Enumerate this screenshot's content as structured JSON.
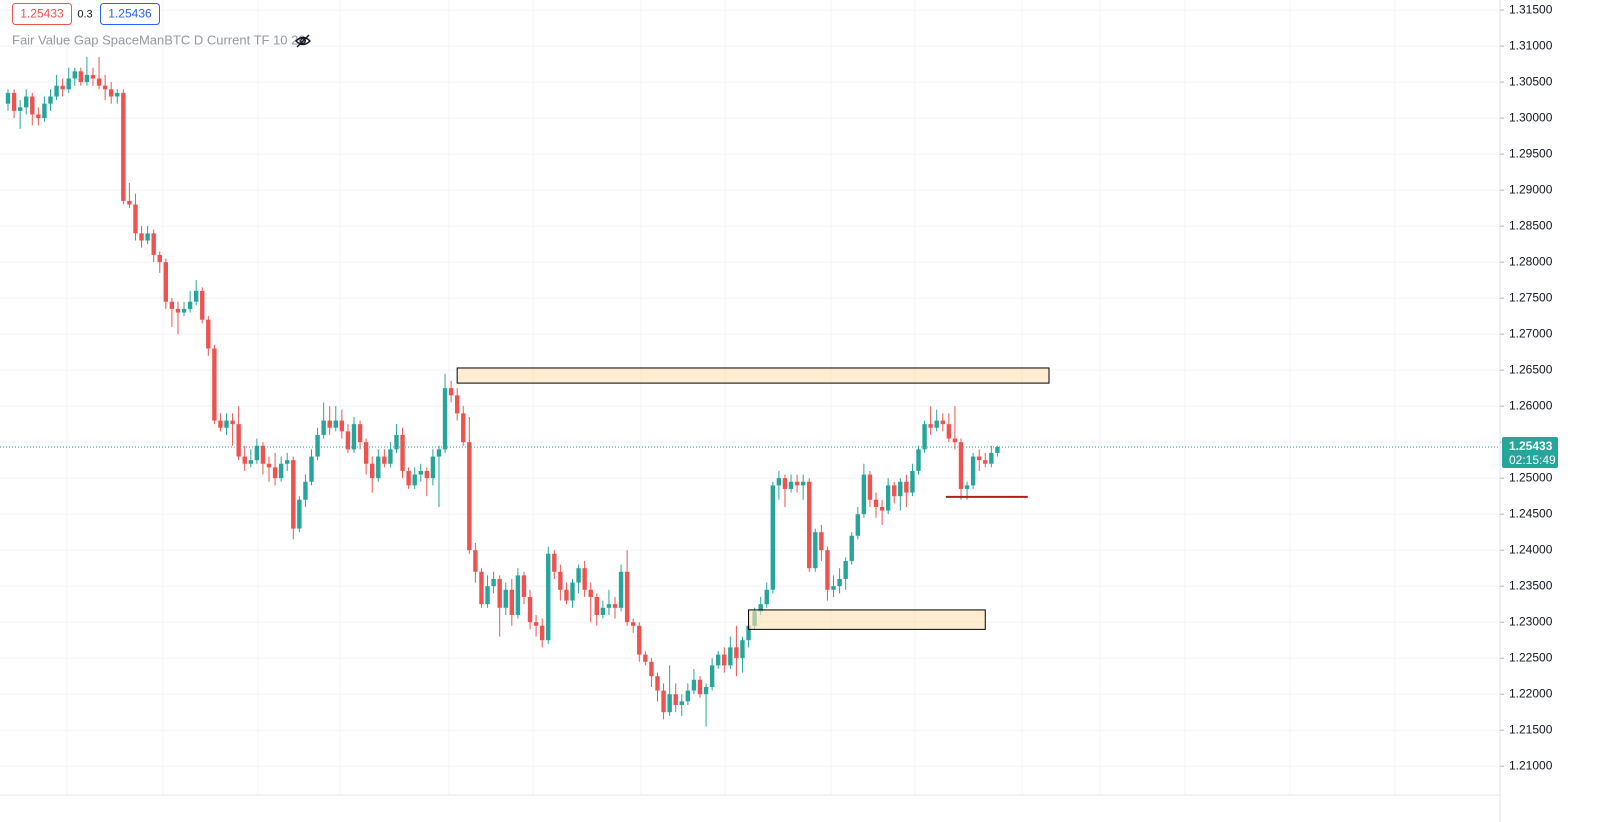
{
  "chart_data": {
    "type": "candlestick",
    "title": "Fair Value Gap SpaceManBTC D Current TF 10 20",
    "quote": {
      "bid": "1.25433",
      "spread": "0.3",
      "ask": "1.25436"
    },
    "up_color": "#26a69a",
    "down_color": "#ef5350",
    "open": [
      1.302,
      1.3035,
      1.301,
      1.3015,
      1.303,
      1.3005,
      1.3,
      1.302,
      1.303,
      1.3045,
      1.304,
      1.3055,
      1.3065,
      1.305,
      1.306,
      1.3055,
      1.3045,
      1.304,
      1.303,
      1.3035,
      1.2885,
      1.288,
      1.284,
      1.283,
      1.284,
      1.281,
      1.28,
      1.2745,
      1.2735,
      1.273,
      1.2735,
      1.2745,
      1.276,
      1.272,
      1.268,
      1.258,
      1.257,
      1.258,
      1.2575,
      1.253,
      1.252,
      1.2525,
      1.2545,
      1.252,
      1.2515,
      1.25,
      1.252,
      1.2525,
      1.243,
      1.247,
      1.2495,
      1.253,
      1.256,
      1.258,
      1.257,
      1.258,
      1.2565,
      1.254,
      1.2575,
      1.255,
      1.252,
      1.25,
      1.253,
      1.252,
      1.254,
      1.256,
      1.251,
      1.249,
      1.2505,
      1.251,
      1.25,
      1.253,
      1.254,
      1.2625,
      1.2615,
      1.259,
      1.255,
      1.24,
      1.237,
      1.2325,
      1.235,
      1.236,
      1.232,
      1.2345,
      1.231,
      1.2365,
      1.2335,
      1.23,
      1.2295,
      1.2275,
      1.2395,
      1.237,
      1.2345,
      1.233,
      1.2355,
      1.2375,
      1.2345,
      1.2335,
      1.231,
      1.232,
      1.2325,
      1.232,
      1.237,
      1.23,
      1.2295,
      1.2255,
      1.2245,
      1.2225,
      1.2205,
      1.2175,
      1.22,
      1.2185,
      1.219,
      1.2205,
      1.222,
      1.22,
      1.221,
      1.224,
      1.2255,
      1.224,
      1.2265,
      1.225,
      1.2275,
      1.2295,
      1.2315,
      1.2325,
      1.2345,
      1.249,
      1.25,
      1.2485,
      1.2495,
      1.249,
      1.2495,
      1.2375,
      1.2425,
      1.24,
      1.2345,
      1.235,
      1.236,
      1.2385,
      1.242,
      1.245,
      1.2505,
      1.247,
      1.246,
      1.2455,
      1.249,
      1.2475,
      1.2495,
      1.248,
      1.251,
      1.254,
      1.2575,
      1.257,
      1.258,
      1.2575,
      1.2555,
      1.255,
      1.2485,
      1.249,
      1.253,
      1.2525,
      1.252,
      1.2535
    ],
    "high": [
      1.304,
      1.304,
      1.3025,
      1.304,
      1.3035,
      1.3015,
      1.303,
      1.304,
      1.306,
      1.3055,
      1.307,
      1.307,
      1.307,
      1.3085,
      1.307,
      1.3085,
      1.306,
      1.305,
      1.304,
      1.304,
      1.291,
      1.2895,
      1.285,
      1.285,
      1.2845,
      1.2815,
      1.2805,
      1.275,
      1.2745,
      1.2745,
      1.276,
      1.2775,
      1.2765,
      1.2725,
      1.2685,
      1.259,
      1.259,
      1.259,
      1.26,
      1.2545,
      1.254,
      1.2555,
      1.255,
      1.253,
      1.2535,
      1.253,
      1.2535,
      1.253,
      1.2475,
      1.2505,
      1.254,
      1.257,
      1.2605,
      1.26,
      1.26,
      1.2595,
      1.2575,
      1.2585,
      1.258,
      1.2555,
      1.253,
      1.254,
      1.254,
      1.255,
      1.2575,
      1.257,
      1.2515,
      1.2515,
      1.252,
      1.2515,
      1.254,
      1.2545,
      1.2645,
      1.2635,
      1.2625,
      1.26,
      1.2585,
      1.241,
      1.2375,
      1.2365,
      1.237,
      1.2365,
      1.2355,
      1.236,
      1.2375,
      1.237,
      1.2345,
      1.231,
      1.2305,
      1.2405,
      1.24,
      1.238,
      1.2355,
      1.236,
      1.238,
      1.2385,
      1.2355,
      1.234,
      1.233,
      1.2345,
      1.2335,
      1.238,
      1.24,
      1.2305,
      1.23,
      1.226,
      1.225,
      1.223,
      1.2215,
      1.224,
      1.2215,
      1.22,
      1.2215,
      1.2235,
      1.2225,
      1.2215,
      1.225,
      1.226,
      1.2265,
      1.228,
      1.2295,
      1.228,
      1.23,
      1.232,
      1.2335,
      1.2355,
      1.2495,
      1.251,
      1.2505,
      1.2505,
      1.2505,
      1.2505,
      1.25,
      1.243,
      1.2435,
      1.2405,
      1.2365,
      1.2375,
      1.239,
      1.2425,
      1.246,
      1.252,
      1.251,
      1.248,
      1.247,
      1.25,
      1.2495,
      1.25,
      1.2505,
      1.252,
      1.2545,
      1.258,
      1.26,
      1.2595,
      1.259,
      1.259,
      1.26,
      1.2555,
      1.2495,
      1.2535,
      1.254,
      1.2535,
      1.2545,
      1.2545
    ],
    "low": [
      1.301,
      1.3,
      1.2985,
      1.3005,
      1.299,
      1.299,
      1.2995,
      1.301,
      1.3025,
      1.303,
      1.3035,
      1.3045,
      1.3045,
      1.3045,
      1.3045,
      1.304,
      1.3025,
      1.302,
      1.302,
      1.288,
      1.2875,
      1.283,
      1.282,
      1.2825,
      1.28,
      1.2785,
      1.2735,
      1.271,
      1.27,
      1.2725,
      1.273,
      1.274,
      1.2715,
      1.267,
      1.2575,
      1.2565,
      1.256,
      1.2545,
      1.2525,
      1.251,
      1.2515,
      1.252,
      1.2505,
      1.2495,
      1.249,
      1.2495,
      1.251,
      1.2415,
      1.2425,
      1.246,
      1.249,
      1.2525,
      1.2555,
      1.256,
      1.2565,
      1.2555,
      1.2535,
      1.2535,
      1.254,
      1.2505,
      1.248,
      1.2495,
      1.2515,
      1.2515,
      1.2535,
      1.25,
      1.2485,
      1.2485,
      1.2495,
      1.2475,
      1.249,
      1.246,
      1.2535,
      1.2605,
      1.258,
      1.2545,
      1.2395,
      1.2355,
      1.232,
      1.232,
      1.234,
      1.228,
      1.231,
      1.2295,
      1.2305,
      1.2325,
      1.229,
      1.228,
      1.2265,
      1.227,
      1.236,
      1.233,
      1.2325,
      1.232,
      1.234,
      1.2335,
      1.23,
      1.2295,
      1.2305,
      1.231,
      1.2305,
      1.2315,
      1.2295,
      1.2285,
      1.2245,
      1.224,
      1.221,
      1.219,
      1.2165,
      1.217,
      1.2175,
      1.217,
      1.2185,
      1.22,
      1.2195,
      1.2155,
      1.2205,
      1.2235,
      1.223,
      1.2235,
      1.2225,
      1.223,
      1.2265,
      1.229,
      1.231,
      1.232,
      1.234,
      1.247,
      1.246,
      1.248,
      1.248,
      1.247,
      1.237,
      1.237,
      1.2385,
      1.233,
      1.2335,
      1.234,
      1.2345,
      1.238,
      1.2415,
      1.2445,
      1.246,
      1.2445,
      1.2435,
      1.245,
      1.2465,
      1.2455,
      1.246,
      1.2475,
      1.2505,
      1.2535,
      1.256,
      1.2565,
      1.2565,
      1.255,
      1.254,
      1.247,
      1.247,
      1.2485,
      1.251,
      1.2515,
      1.2515,
      1.253
    ],
    "close": [
      1.3035,
      1.301,
      1.3015,
      1.303,
      1.3005,
      1.3,
      1.302,
      1.303,
      1.3045,
      1.304,
      1.3055,
      1.3065,
      1.305,
      1.306,
      1.3055,
      1.3045,
      1.304,
      1.303,
      1.3035,
      1.2885,
      1.288,
      1.284,
      1.283,
      1.284,
      1.281,
      1.28,
      1.2745,
      1.2735,
      1.273,
      1.2735,
      1.2745,
      1.276,
      1.272,
      1.268,
      1.258,
      1.257,
      1.258,
      1.2575,
      1.253,
      1.252,
      1.2525,
      1.2545,
      1.252,
      1.2515,
      1.25,
      1.252,
      1.2525,
      1.243,
      1.247,
      1.2495,
      1.253,
      1.256,
      1.258,
      1.257,
      1.258,
      1.2565,
      1.254,
      1.2575,
      1.255,
      1.252,
      1.25,
      1.253,
      1.252,
      1.254,
      1.256,
      1.251,
      1.249,
      1.2505,
      1.251,
      1.25,
      1.253,
      1.254,
      1.2625,
      1.2615,
      1.259,
      1.255,
      1.24,
      1.237,
      1.2325,
      1.235,
      1.236,
      1.232,
      1.2345,
      1.231,
      1.2365,
      1.2335,
      1.23,
      1.2295,
      1.2275,
      1.2395,
      1.237,
      1.2345,
      1.233,
      1.2355,
      1.2375,
      1.2345,
      1.2335,
      1.231,
      1.232,
      1.2325,
      1.232,
      1.237,
      1.23,
      1.2295,
      1.2255,
      1.2245,
      1.2225,
      1.2205,
      1.2175,
      1.22,
      1.2185,
      1.219,
      1.2205,
      1.222,
      1.22,
      1.221,
      1.224,
      1.2255,
      1.224,
      1.2265,
      1.225,
      1.2275,
      1.2295,
      1.2315,
      1.2325,
      1.2345,
      1.249,
      1.25,
      1.2485,
      1.2495,
      1.249,
      1.2495,
      1.2375,
      1.2425,
      1.24,
      1.2345,
      1.235,
      1.236,
      1.2385,
      1.242,
      1.245,
      1.2505,
      1.247,
      1.246,
      1.2455,
      1.249,
      1.2475,
      1.2495,
      1.248,
      1.251,
      1.254,
      1.2575,
      1.257,
      1.258,
      1.2575,
      1.2555,
      1.255,
      1.2485,
      1.249,
      1.253,
      1.2525,
      1.252,
      1.2535,
      1.25433
    ],
    "zones": [
      {
        "x0": 74,
        "x1": 171.5,
        "low": 1.2632,
        "high": 1.2653
      },
      {
        "x0": 122,
        "x1": 161,
        "low": 1.229,
        "high": 1.2317
      }
    ],
    "zone_color": "#ffe0b2",
    "level": {
      "x0": 154.5,
      "x1": 168,
      "value": 1.2474,
      "color": "#b71c1c"
    },
    "last_price": {
      "value": 1.25433,
      "label": "1.25433"
    },
    "countdown": "02:15:49",
    "ylim": [
      1.206,
      1.3164
    ],
    "yticks": [
      {
        "value": 1.315,
        "label": "1.31500"
      },
      {
        "value": 1.31,
        "label": "1.31000"
      },
      {
        "value": 1.305,
        "label": "1.30500"
      },
      {
        "value": 1.3,
        "label": "1.30000"
      },
      {
        "value": 1.295,
        "label": "1.29500"
      },
      {
        "value": 1.29,
        "label": "1.29000"
      },
      {
        "value": 1.285,
        "label": "1.28500"
      },
      {
        "value": 1.28,
        "label": "1.28000"
      },
      {
        "value": 1.275,
        "label": "1.27500"
      },
      {
        "value": 1.27,
        "label": "1.27000"
      },
      {
        "value": 1.265,
        "label": "1.26500"
      },
      {
        "value": 1.26,
        "label": "1.26000"
      },
      {
        "value": 1.255,
        "label": "1.25500"
      },
      {
        "value": 1.25,
        "label": "1.25000"
      },
      {
        "value": 1.245,
        "label": "1.24500"
      },
      {
        "value": 1.24,
        "label": "1.24000"
      },
      {
        "value": 1.235,
        "label": "1.23500"
      },
      {
        "value": 1.23,
        "label": "1.23000"
      },
      {
        "value": 1.225,
        "label": "1.22500"
      },
      {
        "value": 1.22,
        "label": "1.22000"
      },
      {
        "value": 1.215,
        "label": "1.21500"
      },
      {
        "value": 1.21,
        "label": "1.21000"
      }
    ],
    "grid": true
  }
}
